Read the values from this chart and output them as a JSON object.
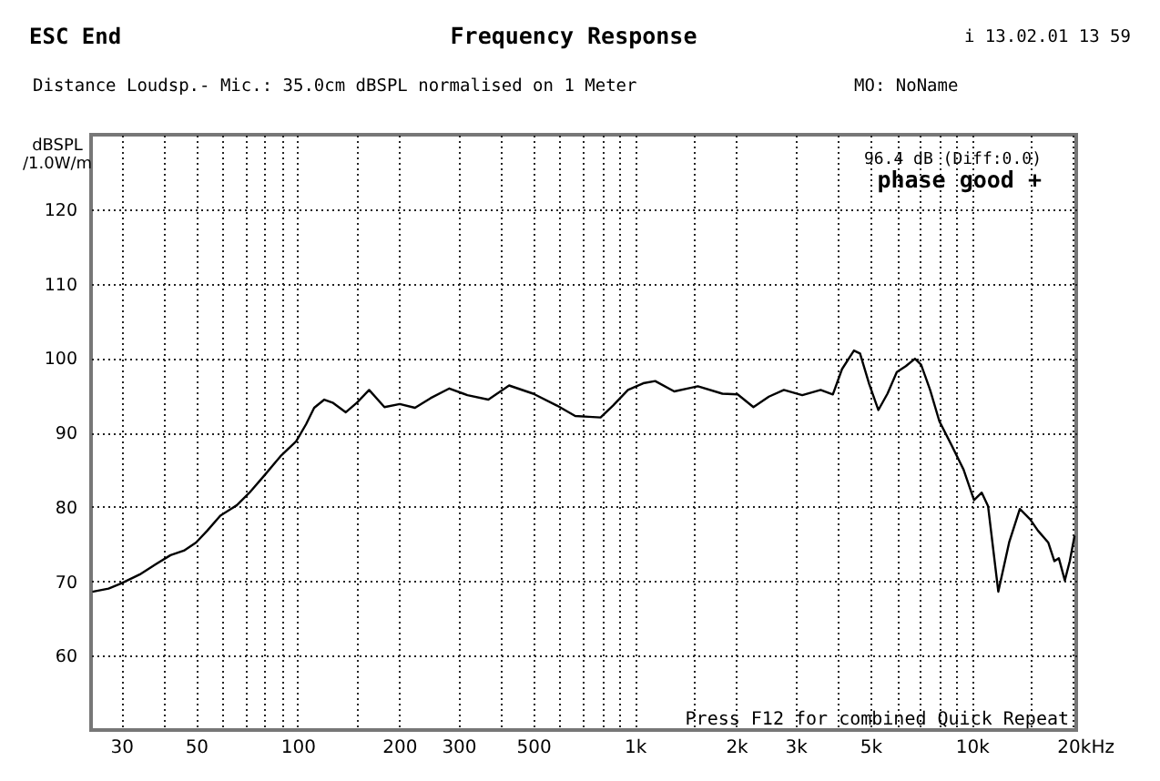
{
  "chart_data": {
    "type": "line",
    "title": "Frequency Response",
    "subtitle": "Distance Loudsp.- Mic.: 35.0cm dBSPL normalised on 1 Meter",
    "xlabel": "Hz",
    "ylabel": "dBSPL\n/1.0W/m",
    "annotations": [
      "ESC End",
      "i 13.02.01 13 59",
      "MO: NoName",
      "96.4 dB (Diff:0.0)",
      "phase good +",
      "Press F12 for combined Quick Repeat"
    ],
    "x": [
      24.8,
      27.5,
      30,
      34,
      38,
      42,
      46,
      50,
      54,
      59,
      66,
      72,
      80,
      89,
      99,
      106,
      112,
      120,
      127,
      139,
      150,
      163,
      181,
      201,
      223,
      248,
      282,
      319,
      368,
      424,
      500,
      588,
      666,
      730,
      792,
      862,
      955,
      1060,
      1150,
      1310,
      1540,
      1820,
      2020,
      2250,
      2500,
      2770,
      3140,
      3560,
      3870,
      4120,
      4470,
      4660,
      4960,
      5280,
      5620,
      5990,
      6370,
      6780,
      7070,
      7520,
      8010,
      8700,
      9450,
      10150,
      10700,
      11170,
      11980,
      12900,
      13880,
      14900,
      15700,
      16850,
      17570,
      18110,
      18870,
      19520,
      20150
    ],
    "series": [
      {
        "color": "#000000",
        "values": [
          68.6,
          69.0,
          69.7,
          70.9,
          72.3,
          73.5,
          74.1,
          75.2,
          76.8,
          78.8,
          80.2,
          81.9,
          84.3,
          86.8,
          88.8,
          91.1,
          93.3,
          94.4,
          94.0,
          92.7,
          94.0,
          95.7,
          93.4,
          93.8,
          93.3,
          94.6,
          95.9,
          95.0,
          94.4,
          96.3,
          95.2,
          93.6,
          92.2,
          92.1,
          92.0,
          93.6,
          95.7,
          96.6,
          96.9,
          95.5,
          96.2,
          95.2,
          95.1,
          93.4,
          94.8,
          95.7,
          95.0,
          95.7,
          95.1,
          98.5,
          101.0,
          100.6,
          96.5,
          93.0,
          95.2,
          98.1,
          98.9,
          99.9,
          99.1,
          95.7,
          91.5,
          88.3,
          85.0,
          80.9,
          81.9,
          80.1,
          68.6,
          75.2,
          79.7,
          78.3,
          76.8,
          75.2,
          72.7,
          73.1,
          70.1,
          72.7,
          76.0
        ]
      }
    ],
    "log": "x",
    "xlim": [
      24.4,
      20400
    ],
    "ylim": [
      50,
      130
    ],
    "xticks": [
      30,
      {
        "value": 40,
        "label": null
      },
      50,
      {
        "value": 60,
        "label": null
      },
      {
        "value": 70,
        "label": null
      },
      {
        "value": 80,
        "label": null
      },
      {
        "value": 90,
        "label": null
      },
      100,
      {
        "value": 150,
        "label": null
      },
      200,
      300,
      {
        "value": 400,
        "label": null
      },
      500,
      {
        "value": 600,
        "label": null
      },
      {
        "value": 700,
        "label": null
      },
      {
        "value": 800,
        "label": null
      },
      {
        "value": 900,
        "label": null
      },
      {
        "value": 1000,
        "label": "1k"
      },
      {
        "value": 1500,
        "label": null
      },
      {
        "value": 2000,
        "label": "2k"
      },
      {
        "value": 3000,
        "label": "3k"
      },
      {
        "value": 4000,
        "label": null
      },
      {
        "value": 5000,
        "label": "5k"
      },
      {
        "value": 6000,
        "label": null
      },
      {
        "value": 7000,
        "label": null
      },
      {
        "value": 8000,
        "label": null
      },
      {
        "value": 9000,
        "label": null
      },
      {
        "value": 10000,
        "label": "10k"
      },
      {
        "value": 15000,
        "label": null
      },
      {
        "value": 20000,
        "label": "20k"
      }
    ],
    "yticks": [
      60,
      70,
      80,
      90,
      100,
      110,
      120
    ],
    "grid": true,
    "line_style": "solid"
  }
}
